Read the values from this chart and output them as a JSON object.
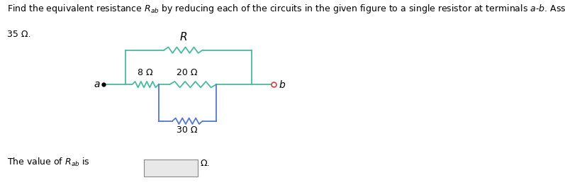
{
  "title_line1": "Find the equivalent resistance $R_{ab}$ by reducing each of the circuits in the given figure to a single resistor at terminals $a$-$b$. Assume $R=$",
  "title_line2": "35 Ω.",
  "bottom_text": "The value of $R_{ab}$ is",
  "bottom_omega": "Ω.",
  "R_label": "$R$",
  "r8_label": "8 Ω",
  "r20_label": "20 Ω",
  "r30_label": "30 Ω",
  "a_label": "$a$",
  "b_label": "$b$",
  "outer_wire_color": "#4db8a0",
  "inner_wire_color": "#5577cc",
  "b_dot_color": "#cc4444",
  "text_color": "#000000",
  "bg_color": "#ffffff",
  "font_size": 9,
  "lw": 1.3
}
